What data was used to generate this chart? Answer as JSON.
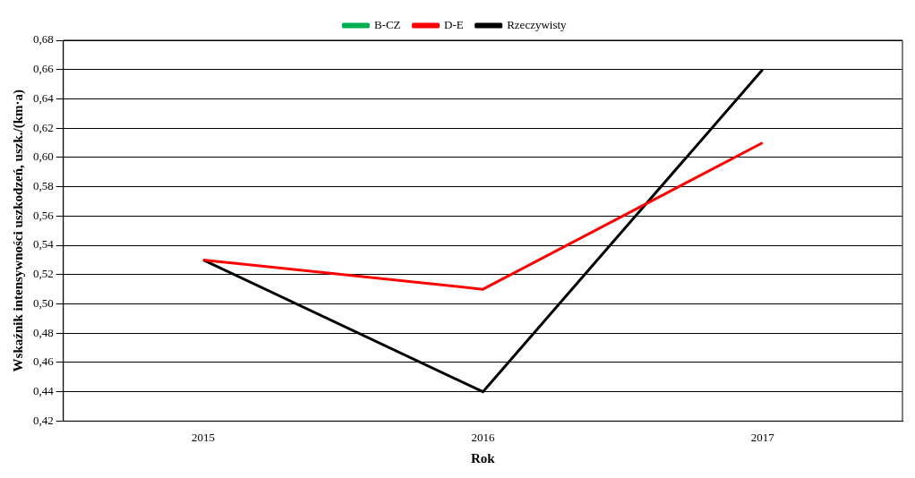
{
  "chart_data": {
    "type": "line",
    "xlabel": "Rok",
    "ylabel": "Wskaźnik intensywności uszkodzeń, uszk./(km·a)",
    "categories": [
      "2015",
      "2016",
      "2017"
    ],
    "series": [
      {
        "name": "B-CZ",
        "color": "#00b050",
        "values": [
          null,
          null,
          null
        ]
      },
      {
        "name": "D-E",
        "color": "#ff0000",
        "values": [
          0.53,
          0.51,
          0.61
        ]
      },
      {
        "name": "Rzeczywisty",
        "color": "#000000",
        "values": [
          0.53,
          0.44,
          0.66
        ]
      }
    ],
    "ylim": [
      0.42,
      0.68
    ],
    "yticks": [
      {
        "value": 0.42,
        "label": "0,42"
      },
      {
        "value": 0.44,
        "label": "0,44"
      },
      {
        "value": 0.46,
        "label": "0,46"
      },
      {
        "value": 0.48,
        "label": "0,48"
      },
      {
        "value": 0.5,
        "label": "0,50"
      },
      {
        "value": 0.52,
        "label": "0,52"
      },
      {
        "value": 0.54,
        "label": "0,54"
      },
      {
        "value": 0.56,
        "label": "0,56"
      },
      {
        "value": 0.58,
        "label": "0,58"
      },
      {
        "value": 0.6,
        "label": "0,60"
      },
      {
        "value": 0.62,
        "label": "0,62"
      },
      {
        "value": 0.64,
        "label": "0,64"
      },
      {
        "value": 0.66,
        "label": "0,66"
      },
      {
        "value": 0.68,
        "label": "0,68"
      }
    ],
    "grid": "y",
    "legend": "top",
    "marker": "none",
    "line_style": "solid"
  }
}
